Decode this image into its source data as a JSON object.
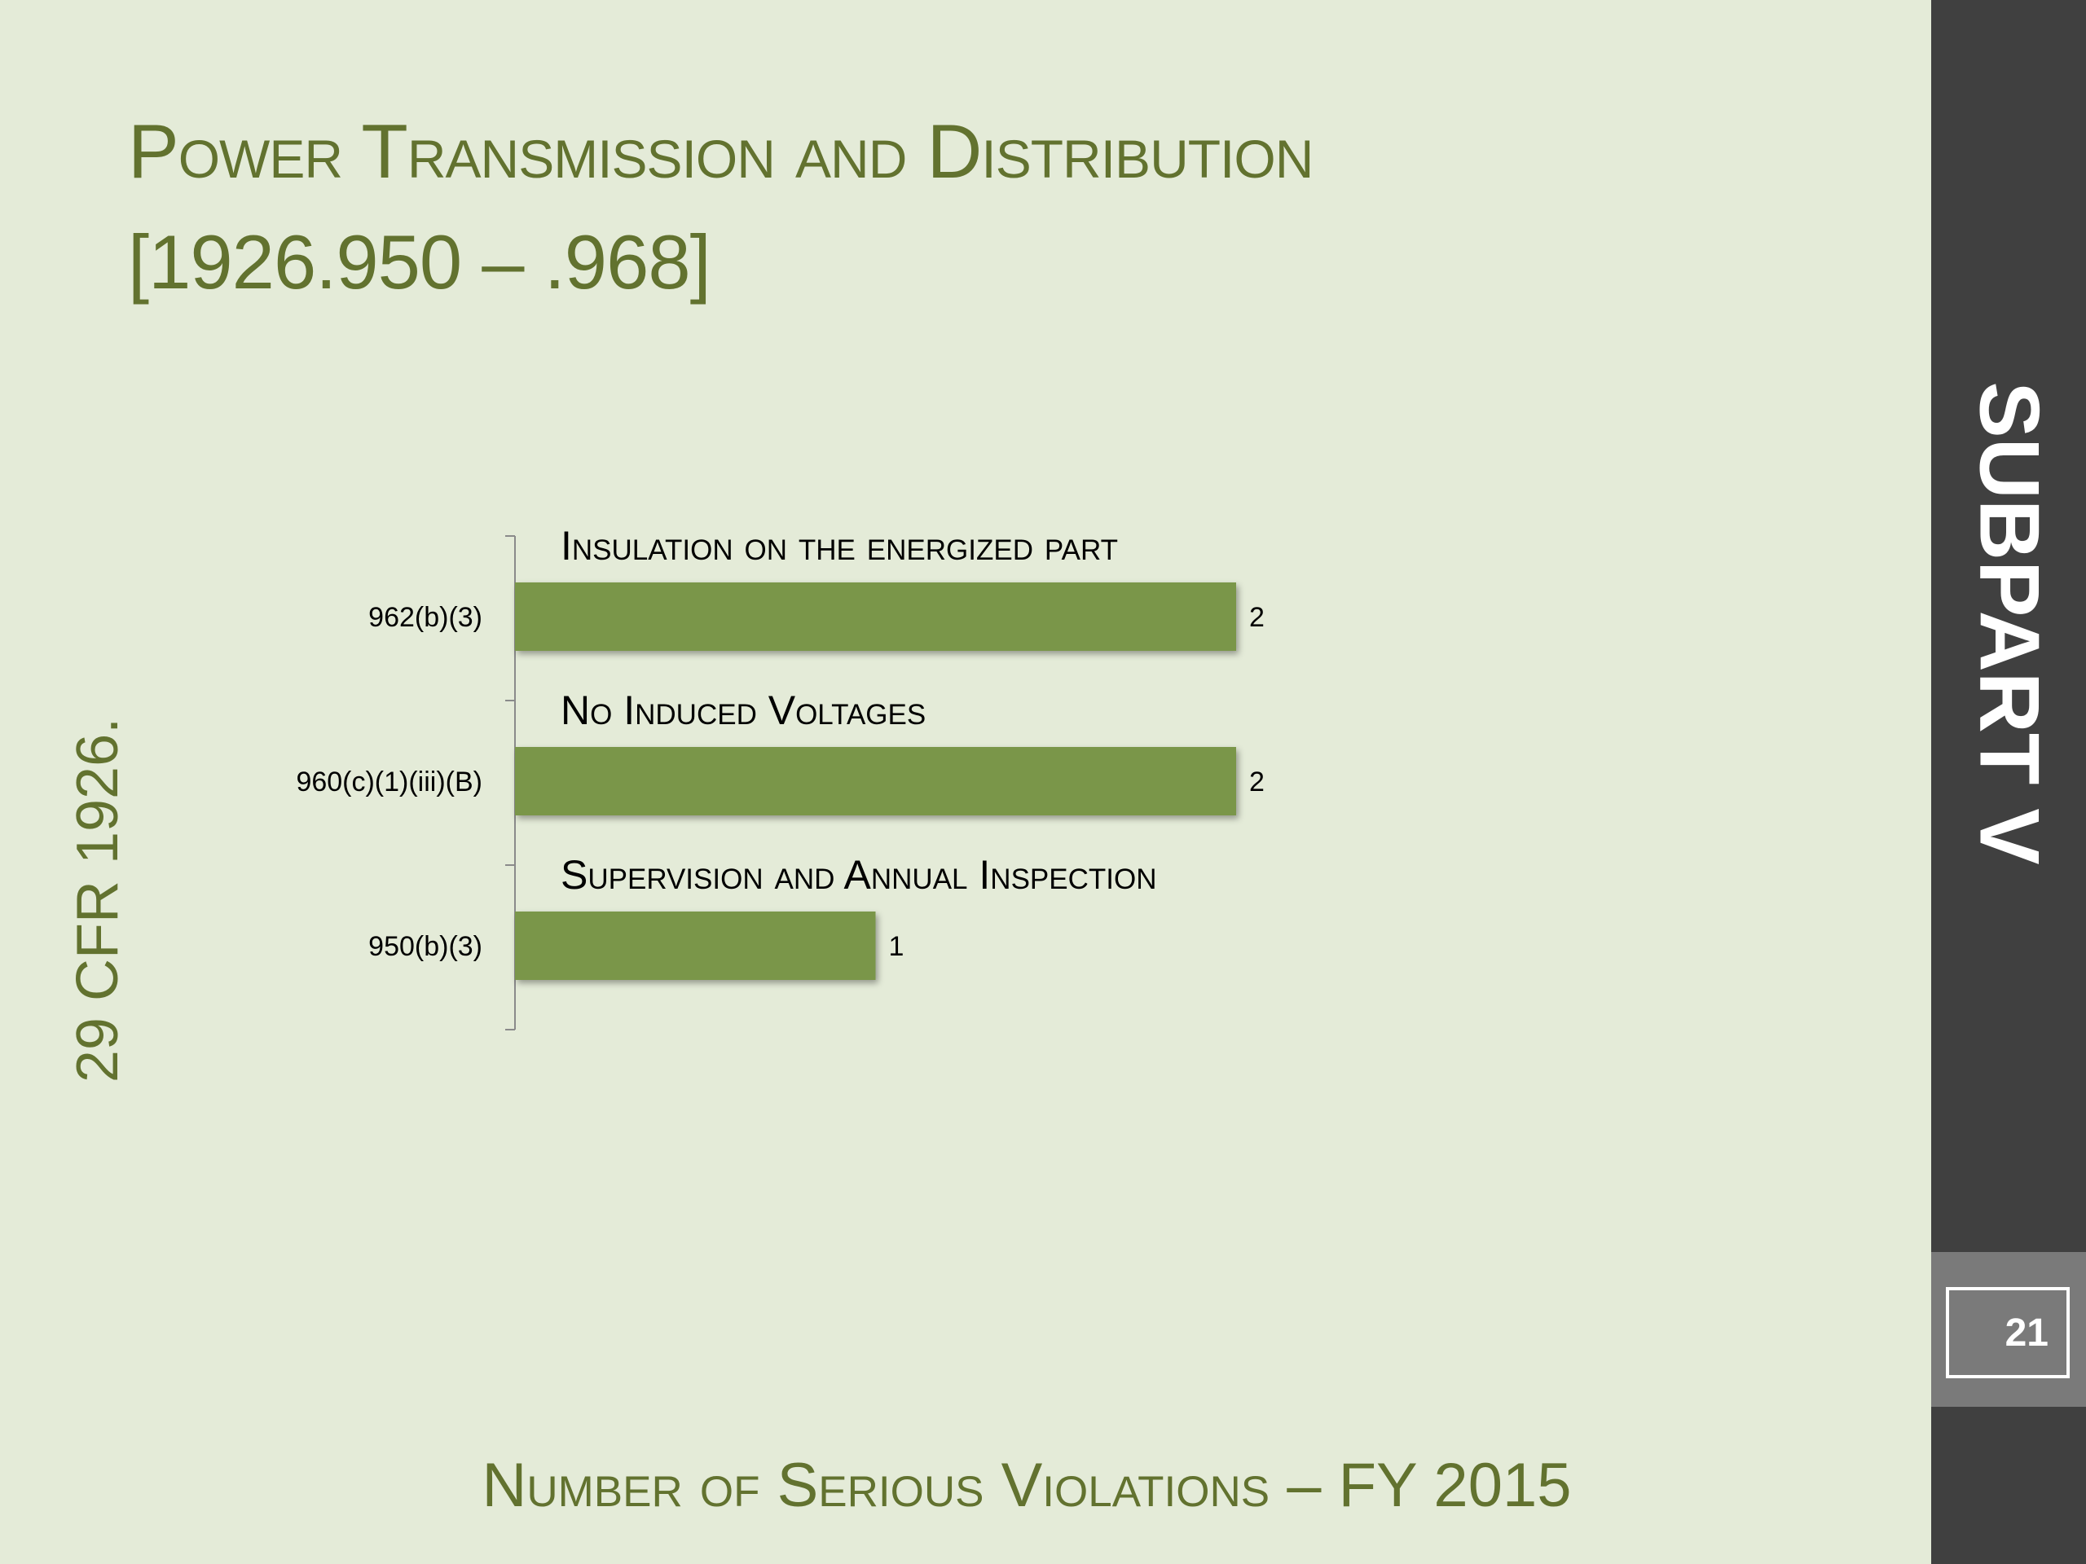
{
  "slide": {
    "title_line1": "Power Transmission and Distribution",
    "title_line2": "[1926.950 – .968]",
    "side_label": "29 CFR 1926.",
    "footer": "Number of Serious Violations – FY 2015",
    "sidebar_label": "SUBPART V",
    "page_number": "21"
  },
  "colors": {
    "background": "#e4ebd8",
    "text_green": "#62722f",
    "bar": "#7a9649",
    "sidebar": "#404040"
  },
  "chart_data": {
    "type": "bar",
    "orientation": "horizontal",
    "categories": [
      "962(b)(3)",
      "960(c)(1)(iii)(B)",
      "950(b)(3)"
    ],
    "values": [
      2,
      2,
      1
    ],
    "annotations": [
      "Insulation on the energized part",
      "No Induced Voltages",
      "Supervision and Annual Inspection"
    ],
    "xlim": [
      0,
      2
    ],
    "grid": false,
    "legend": "none"
  }
}
